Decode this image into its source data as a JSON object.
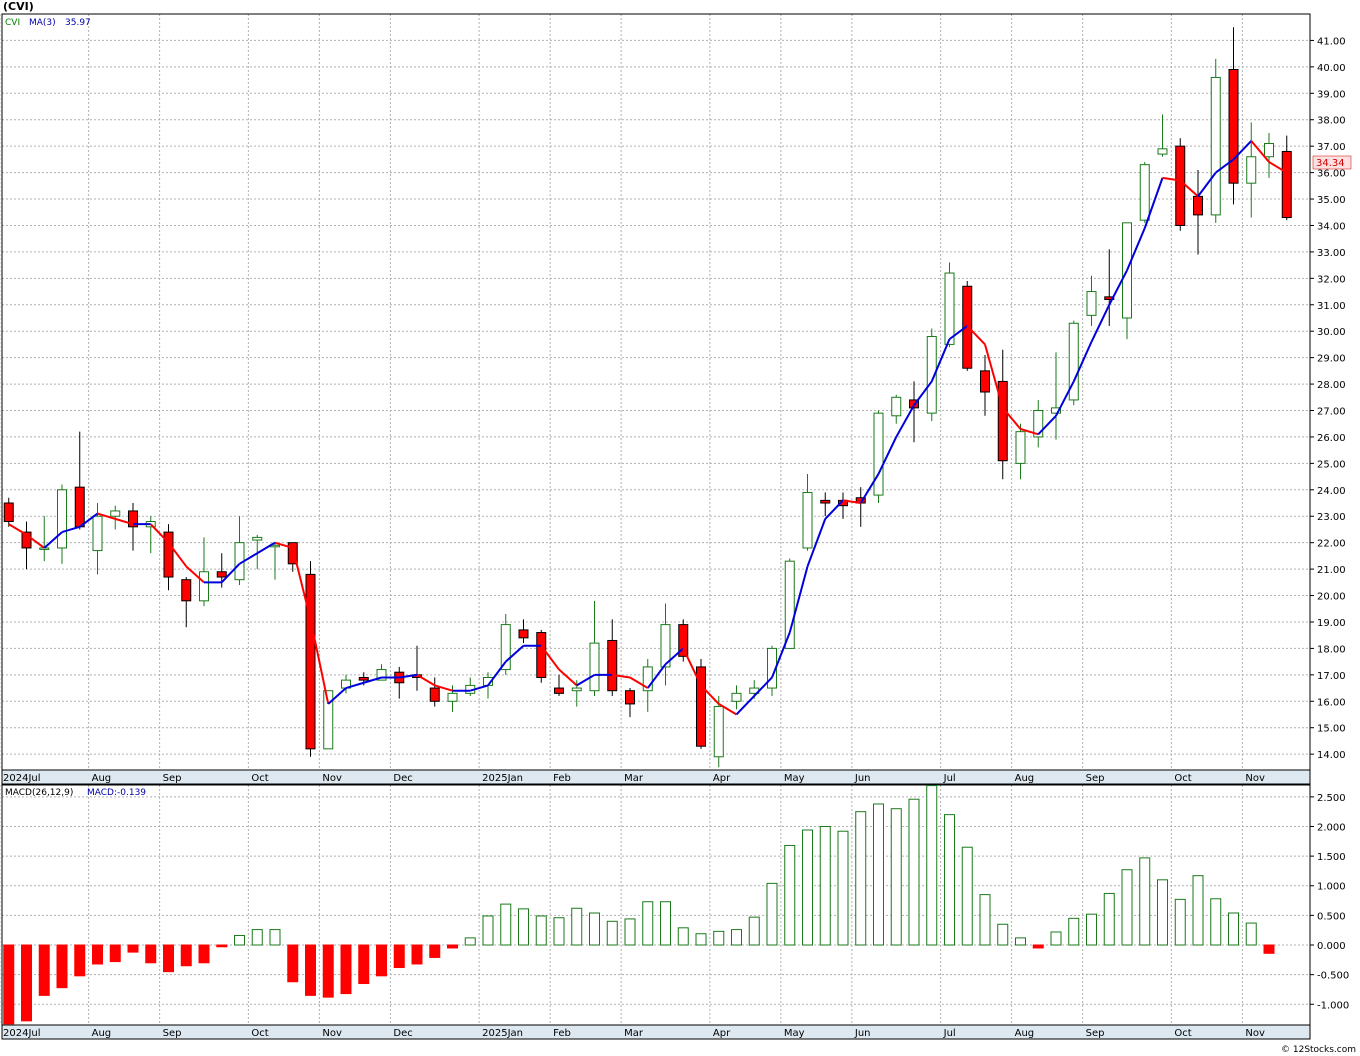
{
  "ticker": "(CVI)",
  "legend": {
    "symbol": "CVI",
    "ma_label": "MA(3)",
    "ma_value": "35.97"
  },
  "last_price": "34.34",
  "macd_legend": {
    "label": "MACD(26,12,9)",
    "value_label": "MACD:-0.139"
  },
  "footer": "© 12Stocks.com",
  "colors": {
    "up": "#1a7a1a",
    "down": "#ff0000",
    "ma_up": "#0000dd",
    "ma_down": "#ff0000",
    "ma_legend": "#0000aa",
    "symbol_legend": "#008000",
    "last_price_text": "#cc0000",
    "last_price_bg": "#ffe0e0",
    "month_band": "#dde8f0"
  },
  "chart_data": [
    {
      "type": "candlestick",
      "period": "weekly",
      "ylim": [
        13.4,
        42.0
      ],
      "yticks": [
        "14.00",
        "15.00",
        "16.00",
        "17.00",
        "18.00",
        "19.00",
        "20.00",
        "21.00",
        "22.00",
        "23.00",
        "24.00",
        "25.00",
        "26.00",
        "27.00",
        "28.00",
        "29.00",
        "30.00",
        "31.00",
        "32.00",
        "33.00",
        "34.00",
        "35.00",
        "36.00",
        "37.00",
        "38.00",
        "39.00",
        "40.00",
        "41.00"
      ],
      "month_labels": [
        {
          "label": "2024Jul",
          "week": 0
        },
        {
          "label": "Aug",
          "week": 5
        },
        {
          "label": "Sep",
          "week": 9
        },
        {
          "label": "Oct",
          "week": 14
        },
        {
          "label": "Nov",
          "week": 18
        },
        {
          "label": "Dec",
          "week": 22
        },
        {
          "label": "2025Jan",
          "week": 27
        },
        {
          "label": "Feb",
          "week": 31
        },
        {
          "label": "Mar",
          "week": 35
        },
        {
          "label": "Apr",
          "week": 40
        },
        {
          "label": "May",
          "week": 44
        },
        {
          "label": "Jun",
          "week": 48
        },
        {
          "label": "Jul",
          "week": 53
        },
        {
          "label": "Aug",
          "week": 57
        },
        {
          "label": "Sep",
          "week": 61
        },
        {
          "label": "Oct",
          "week": 66
        },
        {
          "label": "Nov",
          "week": 70
        }
      ],
      "candles": [
        {
          "o": 23.5,
          "h": 23.7,
          "l": 22.6,
          "c": 22.8
        },
        {
          "o": 22.4,
          "h": 22.8,
          "l": 21.0,
          "c": 21.8
        },
        {
          "o": 21.8,
          "h": 23.0,
          "l": 21.3,
          "c": 21.8
        },
        {
          "o": 21.8,
          "h": 24.2,
          "l": 21.2,
          "c": 24.0
        },
        {
          "o": 24.1,
          "h": 26.2,
          "l": 22.5,
          "c": 22.6
        },
        {
          "o": 21.7,
          "h": 23.5,
          "l": 20.8,
          "c": 23.0
        },
        {
          "o": 23.0,
          "h": 23.4,
          "l": 22.5,
          "c": 23.2
        },
        {
          "o": 23.2,
          "h": 23.5,
          "l": 21.7,
          "c": 22.6
        },
        {
          "o": 22.6,
          "h": 23.0,
          "l": 21.6,
          "c": 22.8
        },
        {
          "o": 22.4,
          "h": 22.7,
          "l": 20.2,
          "c": 20.7
        },
        {
          "o": 20.6,
          "h": 20.7,
          "l": 18.8,
          "c": 19.8
        },
        {
          "o": 19.8,
          "h": 22.2,
          "l": 19.6,
          "c": 20.9
        },
        {
          "o": 20.9,
          "h": 21.6,
          "l": 20.3,
          "c": 20.7
        },
        {
          "o": 20.6,
          "h": 23.0,
          "l": 20.4,
          "c": 22.0
        },
        {
          "o": 22.1,
          "h": 22.3,
          "l": 21.0,
          "c": 22.2
        },
        {
          "o": 21.9,
          "h": 22.0,
          "l": 20.6,
          "c": 21.9
        },
        {
          "o": 22.0,
          "h": 22.0,
          "l": 20.9,
          "c": 21.2
        },
        {
          "o": 20.8,
          "h": 21.3,
          "l": 13.9,
          "c": 14.2
        },
        {
          "o": 14.2,
          "h": 16.4,
          "l": 14.2,
          "c": 16.4
        },
        {
          "o": 16.5,
          "h": 17.0,
          "l": 16.3,
          "c": 16.8
        },
        {
          "o": 16.9,
          "h": 17.1,
          "l": 16.6,
          "c": 16.8
        },
        {
          "o": 16.8,
          "h": 17.4,
          "l": 16.8,
          "c": 17.2
        },
        {
          "o": 17.1,
          "h": 17.3,
          "l": 16.1,
          "c": 16.7
        },
        {
          "o": 17.0,
          "h": 18.1,
          "l": 16.4,
          "c": 16.9
        },
        {
          "o": 16.5,
          "h": 16.9,
          "l": 15.8,
          "c": 16.0
        },
        {
          "o": 16.0,
          "h": 16.6,
          "l": 15.6,
          "c": 16.3
        },
        {
          "o": 16.3,
          "h": 16.9,
          "l": 16.2,
          "c": 16.6
        },
        {
          "o": 16.6,
          "h": 17.1,
          "l": 16.1,
          "c": 16.9
        },
        {
          "o": 17.2,
          "h": 19.3,
          "l": 17.0,
          "c": 18.9
        },
        {
          "o": 18.7,
          "h": 19.1,
          "l": 18.2,
          "c": 18.4
        },
        {
          "o": 18.6,
          "h": 18.7,
          "l": 16.7,
          "c": 16.9
        },
        {
          "o": 16.5,
          "h": 17.0,
          "l": 16.2,
          "c": 16.3
        },
        {
          "o": 16.4,
          "h": 16.8,
          "l": 15.8,
          "c": 16.5
        },
        {
          "o": 16.4,
          "h": 19.8,
          "l": 16.2,
          "c": 18.2
        },
        {
          "o": 18.3,
          "h": 19.1,
          "l": 16.2,
          "c": 16.4
        },
        {
          "o": 16.4,
          "h": 16.5,
          "l": 15.4,
          "c": 15.9
        },
        {
          "o": 16.4,
          "h": 17.6,
          "l": 15.6,
          "c": 17.3
        },
        {
          "o": 17.3,
          "h": 19.7,
          "l": 16.6,
          "c": 18.9
        },
        {
          "o": 18.9,
          "h": 19.1,
          "l": 17.5,
          "c": 17.7
        },
        {
          "o": 17.3,
          "h": 17.6,
          "l": 14.2,
          "c": 14.3
        },
        {
          "o": 13.9,
          "h": 16.2,
          "l": 13.5,
          "c": 15.8
        },
        {
          "o": 16.0,
          "h": 16.6,
          "l": 15.7,
          "c": 16.3
        },
        {
          "o": 16.3,
          "h": 16.8,
          "l": 16.1,
          "c": 16.5
        },
        {
          "o": 16.5,
          "h": 18.1,
          "l": 16.2,
          "c": 18.0
        },
        {
          "o": 18.0,
          "h": 21.4,
          "l": 18.0,
          "c": 21.3
        },
        {
          "o": 21.8,
          "h": 24.6,
          "l": 21.7,
          "c": 23.9
        },
        {
          "o": 23.6,
          "h": 23.9,
          "l": 23.0,
          "c": 23.5
        },
        {
          "o": 23.6,
          "h": 23.9,
          "l": 22.9,
          "c": 23.4
        },
        {
          "o": 23.7,
          "h": 24.1,
          "l": 22.6,
          "c": 23.5
        },
        {
          "o": 23.8,
          "h": 27.0,
          "l": 23.5,
          "c": 26.9
        },
        {
          "o": 26.8,
          "h": 27.6,
          "l": 26.5,
          "c": 27.5
        },
        {
          "o": 27.4,
          "h": 28.1,
          "l": 25.8,
          "c": 27.1
        },
        {
          "o": 26.9,
          "h": 30.1,
          "l": 26.6,
          "c": 29.8
        },
        {
          "o": 29.5,
          "h": 32.6,
          "l": 29.4,
          "c": 32.2
        },
        {
          "o": 31.7,
          "h": 31.9,
          "l": 28.5,
          "c": 28.6
        },
        {
          "o": 28.5,
          "h": 29.1,
          "l": 26.8,
          "c": 27.7
        },
        {
          "o": 28.1,
          "h": 29.3,
          "l": 24.4,
          "c": 25.1
        },
        {
          "o": 25.0,
          "h": 26.5,
          "l": 24.4,
          "c": 26.2
        },
        {
          "o": 26.0,
          "h": 27.4,
          "l": 25.6,
          "c": 27.0
        },
        {
          "o": 26.9,
          "h": 29.2,
          "l": 25.9,
          "c": 27.1
        },
        {
          "o": 27.4,
          "h": 30.4,
          "l": 27.2,
          "c": 30.3
        },
        {
          "o": 30.6,
          "h": 32.1,
          "l": 30.2,
          "c": 31.5
        },
        {
          "o": 31.3,
          "h": 33.1,
          "l": 30.2,
          "c": 31.2
        },
        {
          "o": 30.5,
          "h": 34.1,
          "l": 29.7,
          "c": 34.1
        },
        {
          "o": 34.2,
          "h": 36.4,
          "l": 34.1,
          "c": 36.3
        },
        {
          "o": 36.7,
          "h": 38.2,
          "l": 36.6,
          "c": 36.9
        },
        {
          "o": 37.0,
          "h": 37.3,
          "l": 33.8,
          "c": 34.0
        },
        {
          "o": 35.1,
          "h": 36.1,
          "l": 32.9,
          "c": 34.4
        },
        {
          "o": 34.4,
          "h": 40.3,
          "l": 34.1,
          "c": 39.6
        },
        {
          "o": 39.9,
          "h": 41.5,
          "l": 34.8,
          "c": 35.6
        },
        {
          "o": 35.6,
          "h": 37.9,
          "l": 34.3,
          "c": 36.6
        },
        {
          "o": 36.6,
          "h": 37.5,
          "l": 35.8,
          "c": 37.1
        },
        {
          "o": 36.8,
          "h": 37.4,
          "l": 34.2,
          "c": 34.3
        }
      ],
      "ma": [
        22.7,
        22.3,
        21.8,
        22.4,
        22.6,
        23.1,
        22.9,
        22.7,
        22.7,
        22.0,
        21.1,
        20.5,
        20.5,
        21.2,
        21.6,
        22.0,
        21.8,
        19.1,
        15.9,
        16.5,
        16.7,
        16.9,
        16.9,
        17.0,
        16.6,
        16.4,
        16.4,
        16.6,
        17.5,
        18.1,
        18.1,
        17.2,
        16.6,
        17.0,
        17.0,
        16.9,
        16.5,
        17.4,
        18.0,
        16.6,
        15.9,
        15.5,
        16.2,
        16.9,
        18.6,
        21.1,
        22.9,
        23.6,
        23.5,
        24.6,
        26.0,
        27.2,
        28.1,
        29.7,
        30.2,
        29.5,
        27.1,
        26.3,
        26.1,
        26.8,
        28.1,
        29.6,
        31.0,
        32.3,
        33.9,
        35.8,
        35.7,
        35.1,
        36.0,
        36.5,
        37.2,
        36.4,
        36.0
      ],
      "last_price": 34.34
    },
    {
      "type": "bar",
      "title": "MACD(26,12,9)",
      "ylim": [
        -1.35,
        2.7
      ],
      "yticks": [
        "-1.000",
        "-0.500",
        "0.000",
        "0.500",
        "1.000",
        "1.500",
        "2.000",
        "2.500"
      ],
      "values": [
        -1.33,
        -1.28,
        -0.85,
        -0.72,
        -0.52,
        -0.32,
        -0.28,
        -0.12,
        -0.3,
        -0.45,
        -0.35,
        -0.3,
        -0.03,
        0.16,
        0.26,
        0.26,
        -0.62,
        -0.85,
        -0.88,
        -0.82,
        -0.65,
        -0.52,
        -0.38,
        -0.32,
        -0.21,
        -0.05,
        0.12,
        0.49,
        0.69,
        0.61,
        0.49,
        0.46,
        0.62,
        0.54,
        0.4,
        0.44,
        0.73,
        0.73,
        0.29,
        0.19,
        0.23,
        0.26,
        0.47,
        1.04,
        1.68,
        1.94,
        2.0,
        1.92,
        2.25,
        2.38,
        2.3,
        2.46,
        2.69,
        2.2,
        1.65,
        0.85,
        0.35,
        0.12,
        -0.05,
        0.22,
        0.45,
        0.52,
        0.87,
        1.27,
        1.47,
        1.1,
        0.77,
        1.17,
        0.78,
        0.54,
        0.37,
        -0.14
      ],
      "last_value": -0.139
    }
  ]
}
